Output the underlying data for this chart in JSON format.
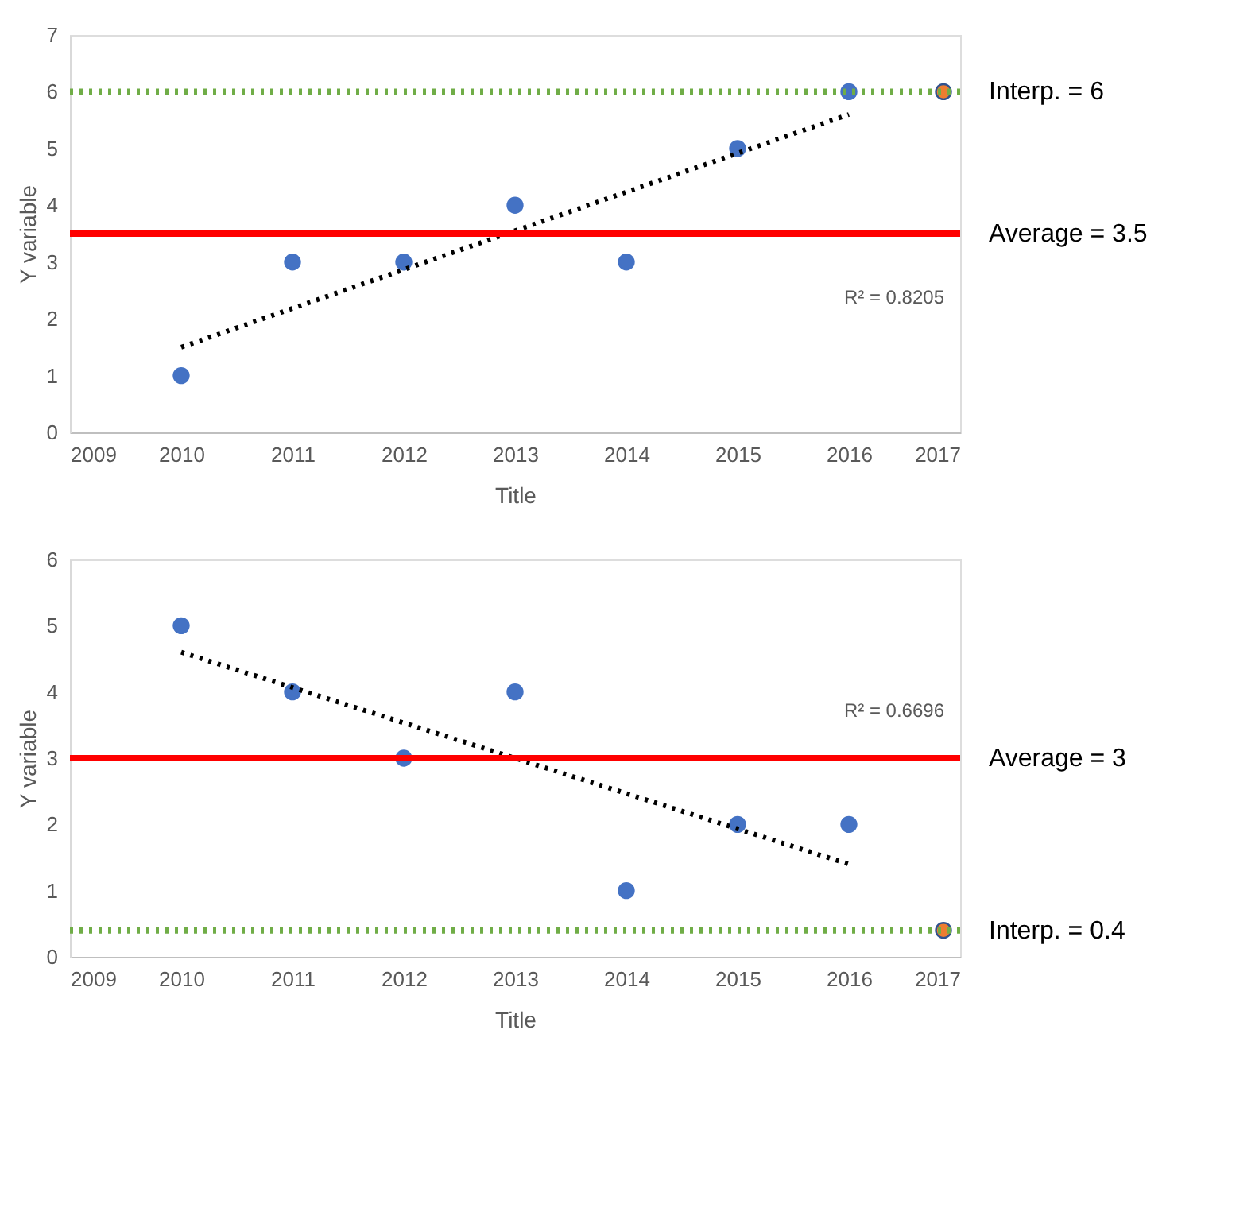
{
  "chart_data": [
    {
      "type": "scatter",
      "xlabel": "Title",
      "ylabel": "Y variable",
      "xlim": [
        2009,
        2017
      ],
      "xticks": [
        2009,
        2010,
        2011,
        2012,
        2013,
        2014,
        2015,
        2016,
        2017
      ],
      "ylim": [
        0,
        7
      ],
      "yticks": [
        0,
        1,
        2,
        3,
        4,
        5,
        6,
        7
      ],
      "grid": false,
      "marker": "circle",
      "x": [
        2010,
        2011,
        2012,
        2013,
        2014,
        2015,
        2016
      ],
      "series": [
        {
          "color": "#4472c4",
          "values": [
            1,
            3,
            3,
            4,
            3,
            5,
            6
          ]
        },
        {
          "type": "line",
          "color": "#000000",
          "line_style": "dotted",
          "marker": "none",
          "x": [
            2010,
            2016
          ],
          "values": [
            1.5,
            5.6
          ]
        },
        {
          "color": "#ed7d31",
          "x": [
            2016.85
          ],
          "values": [
            6
          ]
        }
      ],
      "ref_lines": [
        {
          "axis": "y",
          "value": 6,
          "label": "Interp. = 6",
          "color": "#70ad47",
          "line_style": "dotted"
        },
        {
          "axis": "y",
          "value": 3.5,
          "label": "Average = 3.5",
          "color": "#ff0000",
          "line_style": "solid"
        }
      ],
      "annotations": [
        "R² = 0.8205"
      ]
    },
    {
      "type": "scatter",
      "xlabel": "Title",
      "ylabel": "Y variable",
      "xlim": [
        2009,
        2017
      ],
      "xticks": [
        2009,
        2010,
        2011,
        2012,
        2013,
        2014,
        2015,
        2016,
        2017
      ],
      "ylim": [
        0,
        6
      ],
      "yticks": [
        0,
        1,
        2,
        3,
        4,
        5,
        6
      ],
      "grid": false,
      "marker": "circle",
      "x": [
        2010,
        2011,
        2012,
        2013,
        2014,
        2015,
        2016
      ],
      "series": [
        {
          "color": "#4472c4",
          "values": [
            5,
            4,
            3,
            4,
            1,
            2,
            2
          ]
        },
        {
          "type": "line",
          "color": "#000000",
          "line_style": "dotted",
          "marker": "none",
          "x": [
            2010,
            2016
          ],
          "values": [
            4.6,
            1.4
          ]
        },
        {
          "color": "#ed7d31",
          "x": [
            2016.85
          ],
          "values": [
            0.4
          ]
        }
      ],
      "ref_lines": [
        {
          "axis": "y",
          "value": 3,
          "label": "Average = 3",
          "color": "#ff0000",
          "line_style": "solid"
        },
        {
          "axis": "y",
          "value": 0.4,
          "label": "Interp. = 0.4",
          "color": "#70ad47",
          "line_style": "dotted"
        }
      ],
      "annotations": [
        "R² = 0.6696"
      ]
    }
  ]
}
